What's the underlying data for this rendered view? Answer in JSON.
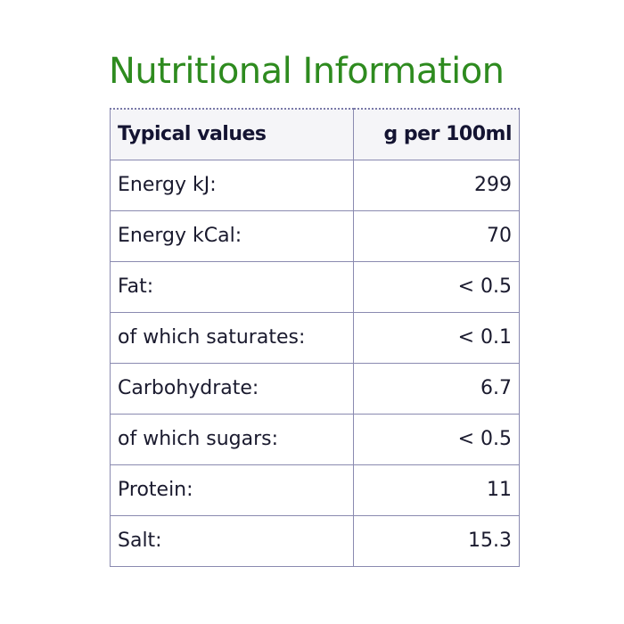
{
  "title": "Nutritional Information",
  "colors": {
    "title": "#2e8b1f",
    "border": "#8a8ab0",
    "header_bg": "#f5f5f8",
    "text": "#1a1a2e"
  },
  "table": {
    "headers": [
      "Typical values",
      "g per 100ml"
    ],
    "rows": [
      [
        "Energy kJ:",
        "299"
      ],
      [
        "Energy kCal:",
        "70"
      ],
      [
        "Fat:",
        "< 0.5"
      ],
      [
        "of which saturates:",
        "< 0.1"
      ],
      [
        "Carbohydrate:",
        "6.7"
      ],
      [
        "of which sugars:",
        "< 0.5"
      ],
      [
        "Protein:",
        "11"
      ],
      [
        "Salt:",
        "15.3"
      ]
    ]
  }
}
